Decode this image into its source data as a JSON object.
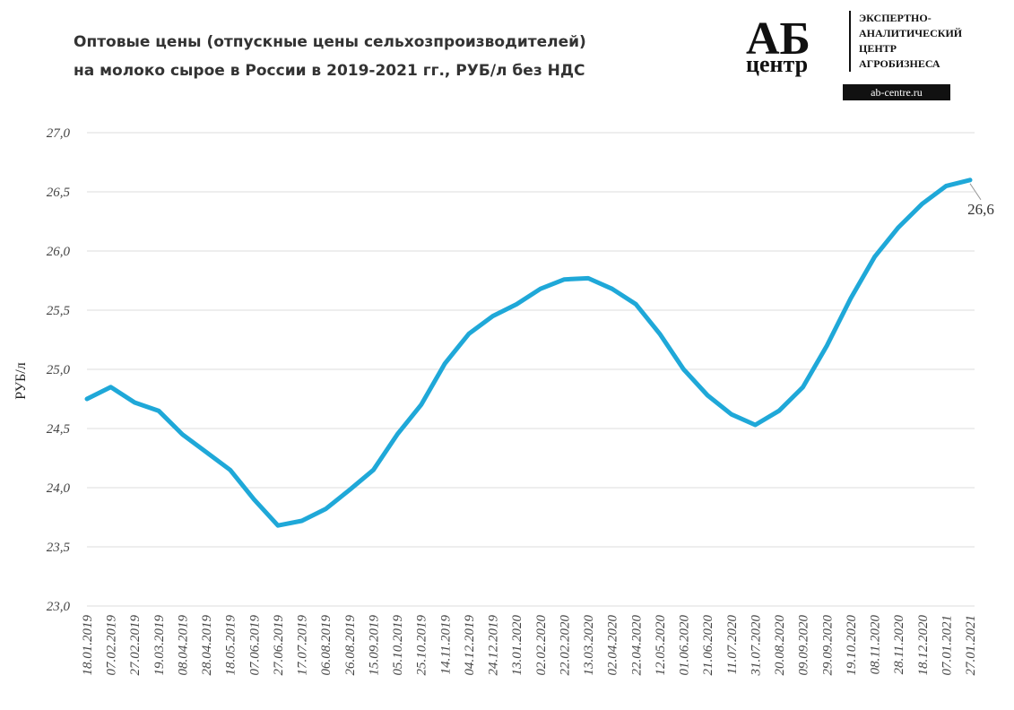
{
  "chart_data": {
    "type": "line",
    "title": [
      "Оптовые цены (отпускные цены сельхозпроизводителей)",
      "на молоко сырое в России в 2019-2021 гг., РУБ/л без НДС"
    ],
    "y_label": "РУБ/л",
    "categories": [
      "18.01.2019",
      "07.02.2019",
      "27.02.2019",
      "19.03.2019",
      "08.04.2019",
      "28.04.2019",
      "18.05.2019",
      "07.06.2019",
      "27.06.2019",
      "17.07.2019",
      "06.08.2019",
      "26.08.2019",
      "15.09.2019",
      "05.10.2019",
      "25.10.2019",
      "14.11.2019",
      "04.12.2019",
      "24.12.2019",
      "13.01.2020",
      "02.02.2020",
      "22.02.2020",
      "13.03.2020",
      "02.04.2020",
      "22.04.2020",
      "12.05.2020",
      "01.06.2020",
      "21.06.2020",
      "11.07.2020",
      "31.07.2020",
      "20.08.2020",
      "09.09.2020",
      "29.09.2020",
      "19.10.2020",
      "08.11.2020",
      "28.11.2020",
      "18.12.2020",
      "07.01.2021",
      "27.01.2021"
    ],
    "series": [
      {
        "color": "#1fa8d8",
        "values": [
          24.75,
          24.85,
          24.72,
          24.65,
          24.45,
          24.3,
          24.15,
          23.9,
          23.68,
          23.72,
          23.82,
          23.98,
          24.15,
          24.45,
          24.7,
          25.05,
          25.3,
          25.45,
          25.55,
          25.68,
          25.76,
          25.77,
          25.68,
          25.55,
          25.3,
          25.0,
          24.78,
          24.62,
          24.53,
          24.65,
          24.85,
          25.2,
          25.6,
          25.95,
          26.2,
          26.4,
          26.55,
          26.6
        ],
        "value_labels": {
          "37": "26,6"
        }
      }
    ],
    "ylim": [
      23,
      27
    ],
    "yticks": [
      {
        "value": 23,
        "label": "23,0"
      },
      {
        "value": 23.5,
        "label": "23,5"
      },
      {
        "value": 24,
        "label": "24,0"
      },
      {
        "value": 24.5,
        "label": "24,5"
      },
      {
        "value": 25,
        "label": "25,0"
      },
      {
        "value": 25.5,
        "label": "25,5"
      },
      {
        "value": 26,
        "label": "26,0"
      },
      {
        "value": 26.5,
        "label": "26,5"
      },
      {
        "value": 27,
        "label": "27,0"
      }
    ],
    "grid": true
  },
  "logo": {
    "mark": "АБ",
    "word": "центр",
    "lines": [
      "ЭКСПЕРТНО-",
      "АНАЛИТИЧЕСКИЙ",
      "ЦЕНТР",
      "АГРОБИЗНЕСА"
    ],
    "site": "ab-centre.ru"
  }
}
